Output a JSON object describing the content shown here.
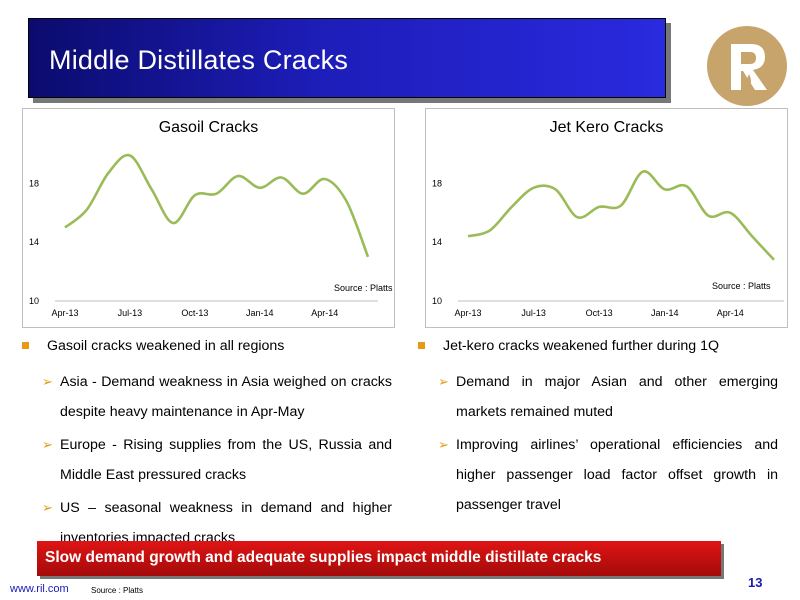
{
  "slide": {
    "title": "Middle Distillates Cracks",
    "bottom_message": "Slow demand growth and adequate supplies impact middle distillate cracks",
    "footer_url": "www.ril.com",
    "footer_source": "Source : Platts",
    "page_number": "13"
  },
  "colors": {
    "accent": "#e49b12",
    "line": "#9bbb59",
    "banner": "#1d1db8",
    "message_bar": "#c41010",
    "logo": "#c7a46c"
  },
  "chart_data": [
    {
      "type": "line",
      "title": "Gasoil Cracks",
      "source": "Source : Platts",
      "x": [
        "Apr-13",
        "May-13",
        "Jun-13",
        "Jul-13",
        "Aug-13",
        "Sep-13",
        "Oct-13",
        "Nov-13",
        "Dec-13",
        "Jan-14",
        "Feb-14",
        "Mar-14",
        "Apr-14",
        "May-14",
        "Jun-14"
      ],
      "x_tick_labels": [
        "Apr-13",
        "Jul-13",
        "Oct-13",
        "Jan-14",
        "Apr-14"
      ],
      "y_tick_labels": [
        "10",
        "14",
        "18"
      ],
      "ylim": [
        10,
        20
      ],
      "series": [
        {
          "values": [
            15.0,
            16.2,
            18.7,
            19.9,
            17.6,
            15.3,
            17.2,
            17.3,
            18.5,
            17.7,
            18.4,
            17.3,
            18.3,
            16.8,
            13.0
          ]
        }
      ]
    },
    {
      "type": "line",
      "title": "Jet Kero Cracks",
      "source": "Source : Platts",
      "x": [
        "Apr-13",
        "May-13",
        "Jun-13",
        "Jul-13",
        "Aug-13",
        "Sep-13",
        "Oct-13",
        "Nov-13",
        "Dec-13",
        "Jan-14",
        "Feb-14",
        "Mar-14",
        "Apr-14",
        "May-14",
        "Jun-14"
      ],
      "x_tick_labels": [
        "Apr-13",
        "Jul-13",
        "Oct-13",
        "Jan-14",
        "Apr-14"
      ],
      "y_tick_labels": [
        "10",
        "14",
        "18"
      ],
      "ylim": [
        10,
        20
      ],
      "series": [
        {
          "values": [
            14.4,
            14.8,
            16.4,
            17.7,
            17.6,
            15.7,
            16.4,
            16.5,
            18.8,
            17.6,
            17.8,
            15.8,
            16.0,
            14.4,
            12.8
          ]
        }
      ]
    }
  ],
  "left_panel": {
    "heading": "Gasoil cracks weakened in all regions",
    "points": [
      "Asia - Demand weakness in Asia weighed on cracks despite heavy maintenance in Apr-May",
      "Europe - Rising supplies from the US, Russia and Middle East pressured cracks",
      "US – seasonal weakness in demand and higher inventories impacted cracks"
    ]
  },
  "right_panel": {
    "heading": "Jet-kero cracks weakened further during 1Q",
    "points": [
      "Demand in major Asian and other emerging markets remained muted",
      "Improving airlines’ operational efficiencies and higher passenger load factor offset growth in passenger travel"
    ]
  }
}
